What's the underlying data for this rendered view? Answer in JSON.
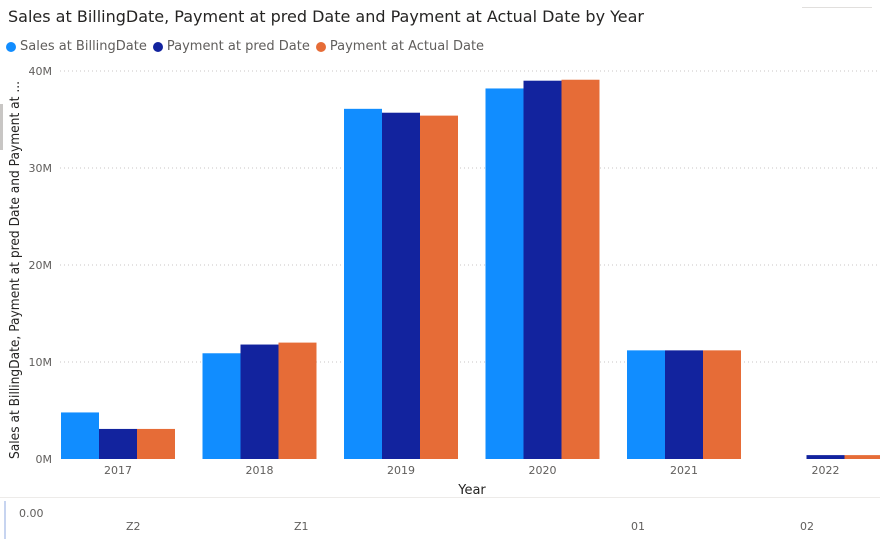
{
  "chart_data": {
    "type": "bar",
    "title": "Sales at BillingDate, Payment at pred Date and Payment at Actual Date by Year",
    "xlabel": "Year",
    "ylabel": "Sales at BillingDate, Payment at pred Date and Payment at ...",
    "categories": [
      "2017",
      "2018",
      "2019",
      "2020",
      "2021",
      "2022"
    ],
    "series": [
      {
        "name": "Sales at BillingDate",
        "color": "#118DFF",
        "values": [
          4.8,
          10.9,
          36.1,
          38.2,
          11.2,
          0
        ]
      },
      {
        "name": "Payment at pred Date",
        "color": "#12239E",
        "values": [
          3.1,
          11.8,
          35.7,
          39.0,
          11.2,
          0.4
        ]
      },
      {
        "name": "Payment at Actual Date",
        "color": "#E66C37",
        "values": [
          3.1,
          12.0,
          35.4,
          39.1,
          11.2,
          0.4
        ]
      }
    ],
    "ylim": [
      0,
      40
    ],
    "yticks": [
      0,
      10,
      20,
      30,
      40
    ],
    "ytick_labels": [
      "0M",
      "10M",
      "20M",
      "30M",
      "40M"
    ],
    "grid": true,
    "legend": "top-left"
  },
  "footer": {
    "value_label": "0.00",
    "labels": [
      "Z2",
      "Z1",
      "01",
      "02"
    ]
  }
}
